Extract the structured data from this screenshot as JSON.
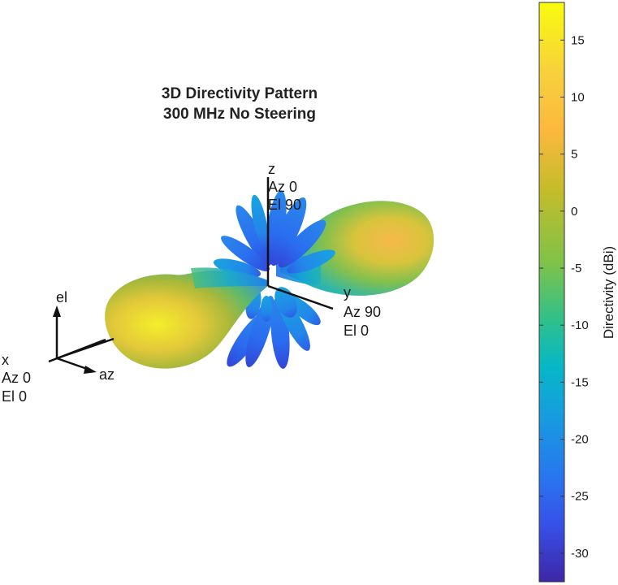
{
  "title": {
    "line1": "3D Directivity Pattern",
    "line2": "300 MHz No Steering"
  },
  "axes_labels": {
    "z": {
      "name": "z",
      "az": "Az 0",
      "el": "El 90"
    },
    "y": {
      "name": "y",
      "az": "Az 90",
      "el": "El 0"
    },
    "x": {
      "name": "x",
      "az": "Az 0",
      "el": "El 0"
    },
    "el_marker": "el",
    "az_marker": "az"
  },
  "colorbar": {
    "label": "Directivity (dBi)",
    "ticks": [
      "15",
      "10",
      "5",
      "0",
      "-5",
      "-10",
      "-15",
      "-20",
      "-25",
      "-30"
    ],
    "colors": [
      "#f9fb0e",
      "#fcbc3c",
      "#bcbd22",
      "#86c341",
      "#2fbf8f",
      "#03b7d2",
      "#1a90e6",
      "#2a62f0",
      "#3b43e0",
      "#3c2a9a"
    ]
  },
  "chart_data": {
    "type": "3d-radiation-pattern",
    "title": "3D Directivity Pattern\n300 MHz No Steering",
    "colorbar_label": "Directivity (dBi)",
    "clim": [
      -32.5,
      18.3
    ],
    "colorbar_ticks": [
      15,
      10,
      5,
      0,
      -5,
      -10,
      -15,
      -20,
      -25,
      -30
    ],
    "main_lobes": [
      {
        "direction": "x (Az 0, El 0)",
        "peak_dBi": 18
      },
      {
        "direction": "-x",
        "peak_dBi": 12
      }
    ],
    "side_lobe_range_dBi": [
      -20,
      -10
    ]
  }
}
